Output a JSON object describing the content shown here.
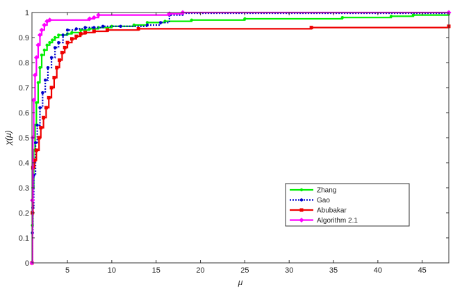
{
  "chart_data": {
    "type": "line",
    "title": "",
    "xlabel": "μ",
    "ylabel": "χ(μ)",
    "xlim": [
      1,
      48
    ],
    "ylim": [
      0,
      1
    ],
    "x_ticks": [
      5,
      10,
      15,
      20,
      25,
      30,
      35,
      40,
      45
    ],
    "y_ticks": [
      0,
      0.1,
      0.2,
      0.3,
      0.4,
      0.5,
      0.6,
      0.7,
      0.8,
      0.9,
      1
    ],
    "x_tick_labels": [
      "5",
      "10",
      "15",
      "20",
      "25",
      "30",
      "35",
      "40",
      "45"
    ],
    "y_tick_labels": [
      "0",
      "0.1",
      "0.2",
      "0.3",
      "0.4",
      "0.5",
      "0.6",
      "0.7",
      "0.8",
      "0.9",
      "1"
    ],
    "grid": false,
    "legend_position": "lower-right",
    "step": true,
    "series": [
      {
        "name": "Zhang",
        "color": "#00ee00",
        "dash": "solid",
        "marker": "dot",
        "x": [
          1.0,
          1.05,
          1.1,
          1.2,
          1.35,
          1.5,
          1.7,
          1.9,
          2.1,
          2.4,
          2.7,
          3.0,
          3.3,
          3.6,
          4.0,
          4.5,
          5.0,
          5.5,
          6.5,
          7.5,
          8.5,
          10.0,
          12.5,
          14.0,
          16.0,
          19.0,
          25.0,
          36.0,
          41.5,
          44.0,
          48.0
        ],
        "y": [
          0.0,
          0.15,
          0.3,
          0.45,
          0.55,
          0.64,
          0.72,
          0.78,
          0.83,
          0.85,
          0.87,
          0.88,
          0.89,
          0.9,
          0.91,
          0.91,
          0.915,
          0.92,
          0.93,
          0.935,
          0.94,
          0.945,
          0.95,
          0.96,
          0.965,
          0.97,
          0.975,
          0.98,
          0.985,
          0.99,
          0.995
        ]
      },
      {
        "name": "Gao",
        "color": "#0000cc",
        "dash": "dotted",
        "marker": "dot",
        "x": [
          1.0,
          1.05,
          1.1,
          1.2,
          1.4,
          1.6,
          1.9,
          2.2,
          2.5,
          2.8,
          3.2,
          3.6,
          4.0,
          4.5,
          5.0,
          6.0,
          7.0,
          8.0,
          9.0,
          11.0,
          14.0,
          15.5,
          16.5,
          18.0,
          48.0
        ],
        "y": [
          0.0,
          0.12,
          0.22,
          0.35,
          0.48,
          0.55,
          0.62,
          0.68,
          0.73,
          0.78,
          0.82,
          0.86,
          0.88,
          0.91,
          0.93,
          0.935,
          0.94,
          0.94,
          0.945,
          0.945,
          0.95,
          0.96,
          0.99,
          0.997,
          1.0
        ]
      },
      {
        "name": "Abubakar",
        "color": "#ee0000",
        "dash": "solid",
        "marker": "square",
        "x": [
          1.0,
          1.05,
          1.1,
          1.3,
          1.5,
          1.8,
          2.0,
          2.3,
          2.6,
          2.9,
          3.2,
          3.5,
          3.8,
          4.1,
          4.4,
          4.7,
          5.0,
          5.5,
          6.0,
          6.5,
          7.0,
          8.0,
          9.5,
          13.0,
          32.5,
          48.0
        ],
        "y": [
          0.0,
          0.2,
          0.38,
          0.41,
          0.45,
          0.5,
          0.54,
          0.58,
          0.62,
          0.66,
          0.7,
          0.74,
          0.78,
          0.81,
          0.84,
          0.86,
          0.88,
          0.895,
          0.905,
          0.915,
          0.92,
          0.925,
          0.93,
          0.935,
          0.94,
          0.945
        ]
      },
      {
        "name": "Algorithm 2.1",
        "color": "#ff00ff",
        "dash": "solid",
        "marker": "diamond",
        "x": [
          1.0,
          1.05,
          1.1,
          1.2,
          1.35,
          1.5,
          1.7,
          1.9,
          2.1,
          2.4,
          2.7,
          3.0,
          7.5,
          8.0,
          8.5,
          16.5,
          18.0,
          48.0
        ],
        "y": [
          0.0,
          0.25,
          0.5,
          0.65,
          0.75,
          0.82,
          0.87,
          0.91,
          0.93,
          0.95,
          0.965,
          0.97,
          0.975,
          0.98,
          0.99,
          0.995,
          1.0,
          1.0
        ]
      }
    ]
  }
}
